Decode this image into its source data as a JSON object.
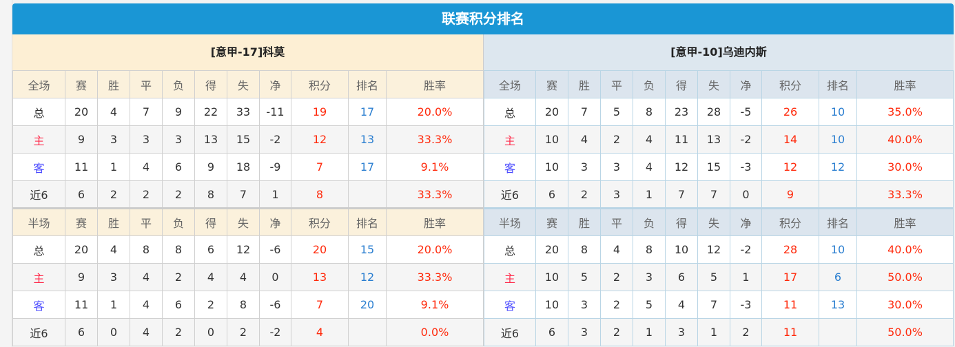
{
  "title": "联赛积分排名",
  "colors": {
    "header": "#1a96d5",
    "points": "#ff2a0c",
    "rank": "#2a7ed0",
    "home": "#ff2a4a",
    "away": "#4a4aff"
  },
  "teams": [
    {
      "name": "[意甲-17]科莫",
      "full": {
        "header": [
          "全场",
          "赛",
          "胜",
          "平",
          "负",
          "得",
          "失",
          "净",
          "积分",
          "排名",
          "胜率"
        ],
        "rows": [
          [
            "总",
            "20",
            "4",
            "7",
            "9",
            "22",
            "33",
            "-11",
            "19",
            "17",
            "20.0%"
          ],
          [
            "主",
            "9",
            "3",
            "3",
            "3",
            "13",
            "15",
            "-2",
            "12",
            "13",
            "33.3%"
          ],
          [
            "客",
            "11",
            "1",
            "4",
            "6",
            "9",
            "18",
            "-9",
            "7",
            "17",
            "9.1%"
          ],
          [
            "近6",
            "6",
            "2",
            "2",
            "2",
            "8",
            "7",
            "1",
            "8",
            "",
            "33.3%"
          ]
        ]
      },
      "half": {
        "header": [
          "半场",
          "赛",
          "胜",
          "平",
          "负",
          "得",
          "失",
          "净",
          "积分",
          "排名",
          "胜率"
        ],
        "rows": [
          [
            "总",
            "20",
            "4",
            "8",
            "8",
            "6",
            "12",
            "-6",
            "20",
            "15",
            "20.0%"
          ],
          [
            "主",
            "9",
            "3",
            "4",
            "2",
            "4",
            "4",
            "0",
            "13",
            "12",
            "33.3%"
          ],
          [
            "客",
            "11",
            "1",
            "4",
            "6",
            "2",
            "8",
            "-6",
            "7",
            "20",
            "9.1%"
          ],
          [
            "近6",
            "6",
            "0",
            "4",
            "2",
            "0",
            "2",
            "-2",
            "4",
            "",
            "0.0%"
          ]
        ]
      }
    },
    {
      "name": "[意甲-10]乌迪内斯",
      "full": {
        "header": [
          "全场",
          "赛",
          "胜",
          "平",
          "负",
          "得",
          "失",
          "净",
          "积分",
          "排名",
          "胜率"
        ],
        "rows": [
          [
            "总",
            "20",
            "7",
            "5",
            "8",
            "23",
            "28",
            "-5",
            "26",
            "10",
            "35.0%"
          ],
          [
            "主",
            "10",
            "4",
            "2",
            "4",
            "11",
            "13",
            "-2",
            "14",
            "10",
            "40.0%"
          ],
          [
            "客",
            "10",
            "3",
            "3",
            "4",
            "12",
            "15",
            "-3",
            "12",
            "12",
            "30.0%"
          ],
          [
            "近6",
            "6",
            "2",
            "3",
            "1",
            "7",
            "7",
            "0",
            "9",
            "",
            "33.3%"
          ]
        ]
      },
      "half": {
        "header": [
          "半场",
          "赛",
          "胜",
          "平",
          "负",
          "得",
          "失",
          "净",
          "积分",
          "排名",
          "胜率"
        ],
        "rows": [
          [
            "总",
            "20",
            "8",
            "4",
            "8",
            "10",
            "12",
            "-2",
            "28",
            "10",
            "40.0%"
          ],
          [
            "主",
            "10",
            "5",
            "2",
            "3",
            "6",
            "5",
            "1",
            "17",
            "6",
            "50.0%"
          ],
          [
            "客",
            "10",
            "3",
            "2",
            "5",
            "4",
            "7",
            "-3",
            "11",
            "13",
            "30.0%"
          ],
          [
            "近6",
            "6",
            "3",
            "2",
            "1",
            "3",
            "1",
            "2",
            "11",
            "",
            "50.0%"
          ]
        ]
      }
    }
  ]
}
